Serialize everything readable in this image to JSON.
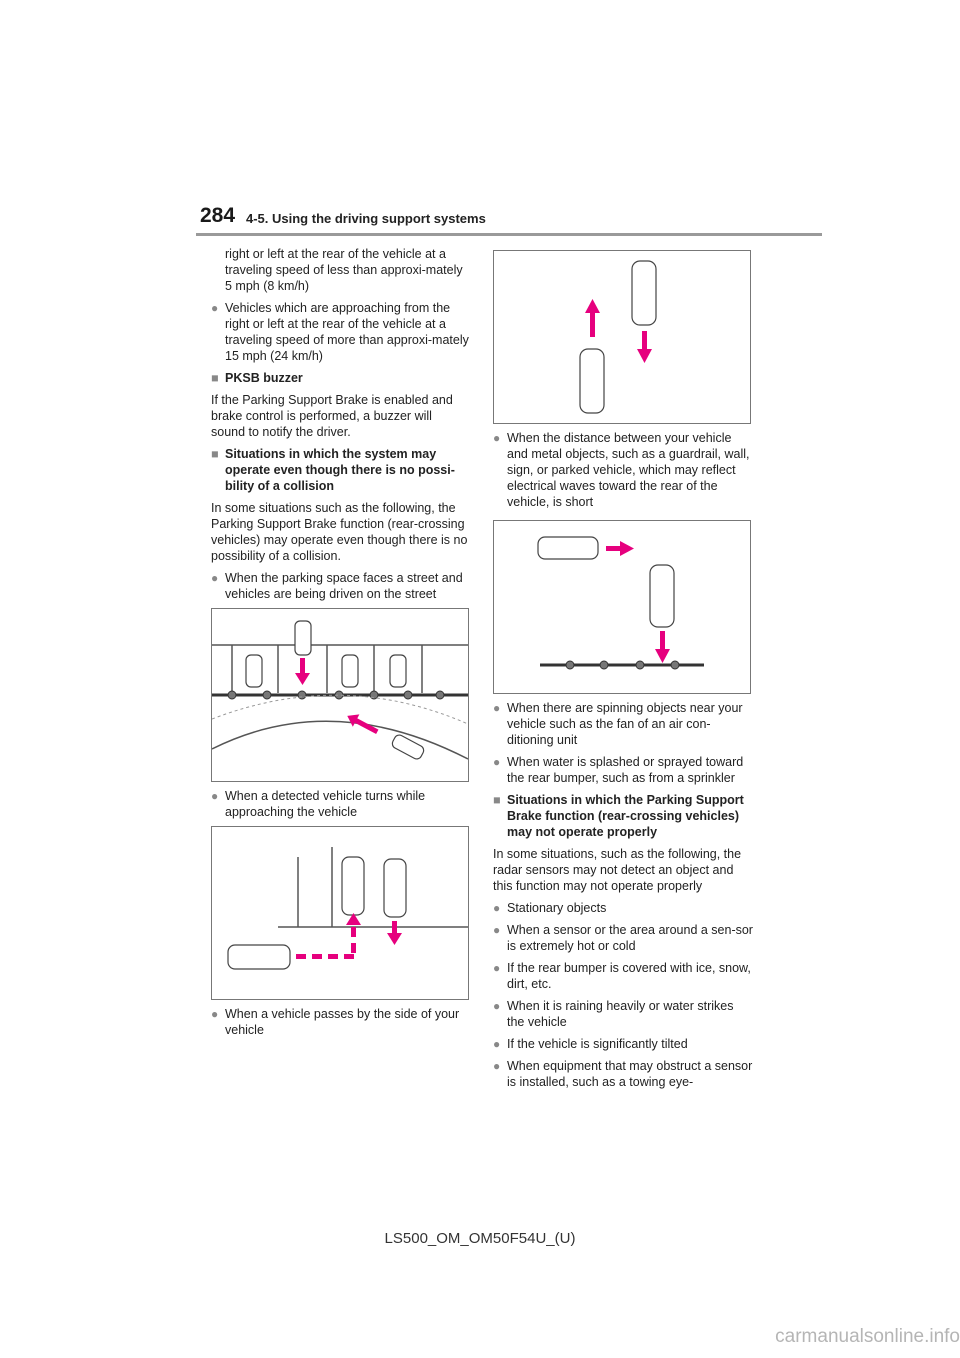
{
  "header": {
    "page_number": "284",
    "section_title": "4-5. Using the driving support systems"
  },
  "left_column": {
    "intro_continuation": "right or left at the rear of the vehicle at a traveling speed of less than approxi-mately 5 mph (8 km/h)",
    "bullet_fast_vehicles": "Vehicles which are approaching from the right or left at the rear of the vehicle at a traveling speed of more than approxi-mately 15 mph (24 km/h)",
    "heading_buzzer": "PKSB buzzer",
    "buzzer_text": "If the Parking Support Brake is enabled and brake control is performed, a buzzer will sound to notify the driver.",
    "heading_no_collision": "Situations in which the system may operate even though there is no possi-bility of a collision",
    "no_collision_text": "In some situations such as the following, the Parking Support Brake function (rear-crossing vehicles) may operate even though there is no possibility of a collision.",
    "bullet_street": "When the parking space faces a street and vehicles are being driven on the street",
    "bullet_turns": "When a detected vehicle turns while approaching the vehicle",
    "bullet_passes": "When a vehicle passes by the side of your vehicle"
  },
  "right_column": {
    "bullet_metal": "When the distance between your vehicle and metal objects, such as a guardrail, wall, sign, or parked vehicle, which may reflect electrical waves toward the rear of the vehicle, is short",
    "bullet_spinning": "When there are spinning objects near your vehicle such as the fan of an air con-ditioning unit",
    "bullet_water": "When water is splashed or sprayed toward the rear bumper, such as from a sprinkler",
    "heading_not_properly": "Situations in which the Parking Support Brake function (rear-crossing vehicles) may not operate properly",
    "not_properly_text": "In some situations, such as the following, the radar sensors may not detect an object and this function may not operate properly",
    "bullets": [
      "Stationary objects",
      "When a sensor or the area around a sen-sor is extremely hot or cold",
      "If the rear bumper is covered with ice, snow, dirt, etc.",
      "When it is raining heavily or water strikes the vehicle",
      "If the vehicle is significantly tilted",
      "When equipment that may obstruct a sensor is installed, such as a towing eye-"
    ]
  },
  "bullet_glyph": "●",
  "heading_glyph": "■",
  "footer": {
    "model_code": "LS500_OM_OM50F54U_(U)"
  },
  "watermark": "carmanualsonline.info",
  "colors": {
    "arrow": "#e6007e",
    "rule": "#9a9a9a",
    "sensor_line": "#333333"
  }
}
